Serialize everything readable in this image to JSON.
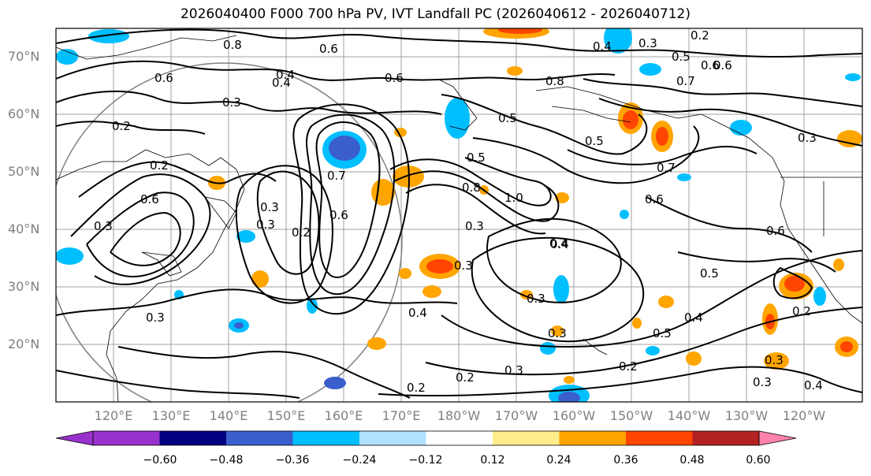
{
  "title": "2026040400 F000 700 hPa PV, IVT Landfall PC (2026040612 - 2026040712)",
  "lat_labels": [
    "70°N",
    "60°N",
    "50°N",
    "40°N",
    "30°N",
    "20°N"
  ],
  "lon_labels": [
    "120°E",
    "130°E",
    "140°E",
    "150°E",
    "160°E",
    "170°E",
    "180°W",
    "170°W",
    "160°W",
    "150°W",
    "140°W",
    "130°W",
    "120°W"
  ],
  "colorbar": {
    "ticks": [
      "−0.60",
      "−0.48",
      "−0.36",
      "−0.24",
      "−0.12",
      "0.12",
      "0.24",
      "0.36",
      "0.48",
      "0.60"
    ],
    "colors": [
      "#9932cc",
      "#000080",
      "#3a5fcd",
      "#00bfff",
      "#b0e2ff",
      "#ffffff",
      "#ffec8b",
      "#ffa500",
      "#ff4500",
      "#b22222",
      "#ff82ab"
    ]
  },
  "contour_labels": [
    "0.8",
    "0.6",
    "0.3",
    "0.2",
    "0.6",
    "0.4",
    "0.6",
    "0.8",
    "0.4",
    "0.3",
    "0.5",
    "0.6",
    "0.7",
    "0.2",
    "0.3",
    "0.2",
    "0.5",
    "0.5",
    "0.7",
    "0.6",
    "0.3",
    "0.6",
    "0.3",
    "0.6",
    "0.3",
    "0.2",
    "0.5",
    "0.7",
    "0.8",
    "0.3",
    "0.4",
    "1.0",
    "0.3",
    "0.3",
    "0.4",
    "0.5",
    "0.3",
    "0.4",
    "0.5",
    "0.6",
    "0.2",
    "0.3",
    "0.3",
    "0.2",
    "0.2",
    "0.3",
    "0.4",
    "0.3",
    "0.2",
    "0.4",
    "0.6",
    "0.4"
  ],
  "shaded_regions": [
    {
      "value": 0.36,
      "color": "#ff4500"
    },
    {
      "value": 0.24,
      "color": "#ffa500"
    },
    {
      "value": -0.24,
      "color": "#00bfff"
    },
    {
      "value": -0.36,
      "color": "#3a5fcd"
    }
  ]
}
